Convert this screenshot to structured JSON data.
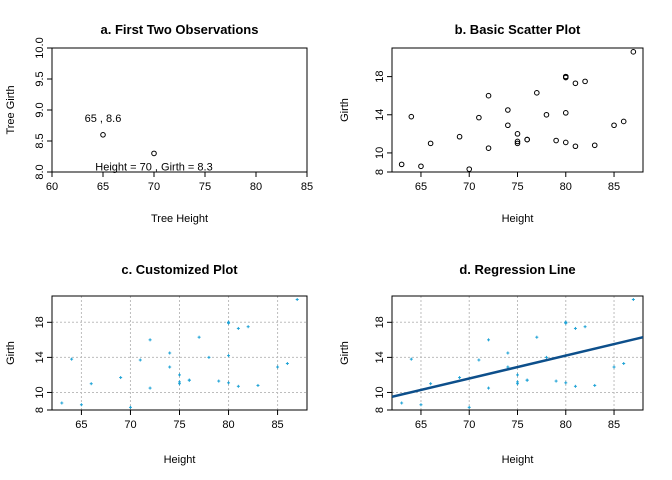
{
  "chart_data": [
    {
      "id": "a",
      "type": "scatter",
      "title": "a. First Two Observations",
      "xlabel": "Tree Height",
      "ylabel": "Tree Girth",
      "xlim": [
        60,
        85
      ],
      "ylim": [
        8.0,
        10.0
      ],
      "xticks": [
        60,
        65,
        70,
        75,
        80,
        85
      ],
      "yticks": [
        8.0,
        8.5,
        9.0,
        9.5,
        10.0
      ],
      "ytick_labels": [
        "8.0",
        "8.5",
        "9.0",
        "9.5",
        "10.0"
      ],
      "grid": false,
      "point_color": "#000000",
      "points": [
        {
          "x": 65,
          "y": 8.6
        },
        {
          "x": 70,
          "y": 8.3
        }
      ],
      "annotations": [
        {
          "text": "65 , 8.6",
          "x": 65,
          "y": 8.6,
          "position": "above"
        },
        {
          "text": "Height = 70 , Girth = 8.3",
          "x": 70,
          "y": 8.3,
          "position": "below"
        }
      ]
    },
    {
      "id": "b",
      "type": "scatter",
      "title": "b. Basic Scatter Plot",
      "xlabel": "Height",
      "ylabel": "Girth",
      "xticks": [
        65,
        70,
        75,
        80,
        85
      ],
      "yticks": [
        8,
        10,
        14,
        18
      ],
      "grid": false,
      "point_color": "#000000"
    },
    {
      "id": "c",
      "type": "scatter",
      "title": "c. Customized Plot",
      "xlabel": "Height",
      "ylabel": "Girth",
      "xticks": [
        65,
        70,
        75,
        80,
        85
      ],
      "yticks": [
        8,
        10,
        14,
        18
      ],
      "grid": true,
      "point_color": "#1fa3d6"
    },
    {
      "id": "d",
      "type": "scatter",
      "title": "d. Regression Line",
      "xlabel": "Height",
      "ylabel": "Girth",
      "xticks": [
        65,
        70,
        75,
        80,
        85
      ],
      "yticks": [
        8,
        10,
        14,
        18
      ],
      "grid": true,
      "point_color": "#1fa3d6",
      "line_color": "#0d4f8b",
      "regression_line": {
        "x": [
          62,
          88
        ],
        "y": [
          9.5,
          16.3
        ]
      }
    }
  ],
  "trees": {
    "x": [
      70,
      65,
      63,
      72,
      81,
      83,
      66,
      75,
      80,
      75,
      79,
      76,
      76,
      69,
      75,
      74,
      85,
      86,
      71,
      64,
      78,
      80,
      74,
      72,
      77,
      81,
      82,
      80,
      80,
      80,
      87
    ],
    "y": [
      8.3,
      8.6,
      8.8,
      10.5,
      10.7,
      10.8,
      11.0,
      11.0,
      11.1,
      11.2,
      11.3,
      11.4,
      11.4,
      11.7,
      12.0,
      12.9,
      12.9,
      13.3,
      13.7,
      13.8,
      14.0,
      14.2,
      14.5,
      16.0,
      16.3,
      17.3,
      17.5,
      17.9,
      18.0,
      18.0,
      20.6
    ],
    "xlim": [
      62,
      88
    ],
    "ylim": [
      8,
      21
    ]
  }
}
